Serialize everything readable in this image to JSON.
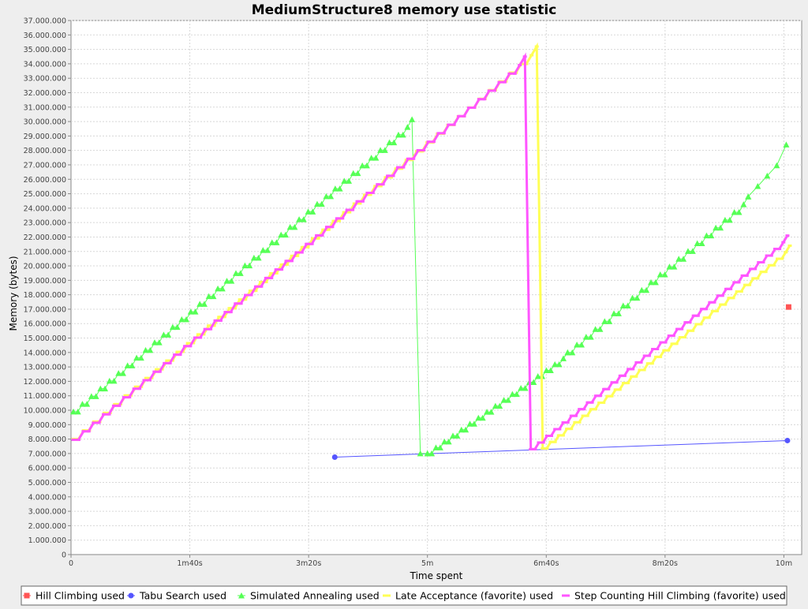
{
  "chart_data": {
    "type": "line",
    "title": "MediumStructure8 memory use statistic",
    "xlabel": "Time spent",
    "ylabel": "Memory (bytes)",
    "xlim": [
      0,
      615
    ],
    "ylim": [
      0,
      37000000
    ],
    "x_ticks": [
      {
        "value": 0,
        "label": "0"
      },
      {
        "value": 100,
        "label": "1m40s"
      },
      {
        "value": 200,
        "label": "3m20s"
      },
      {
        "value": 300,
        "label": "5m"
      },
      {
        "value": 400,
        "label": "6m40s"
      },
      {
        "value": 500,
        "label": "8m20s"
      },
      {
        "value": 600,
        "label": "10m"
      }
    ],
    "y_ticks": [
      {
        "value": 0,
        "label": "0"
      },
      {
        "value": 1000000,
        "label": "1.000.000"
      },
      {
        "value": 2000000,
        "label": "2.000.000"
      },
      {
        "value": 3000000,
        "label": "3.000.000"
      },
      {
        "value": 4000000,
        "label": "4.000.000"
      },
      {
        "value": 5000000,
        "label": "5.000.000"
      },
      {
        "value": 6000000,
        "label": "6.000.000"
      },
      {
        "value": 7000000,
        "label": "7.000.000"
      },
      {
        "value": 8000000,
        "label": "8.000.000"
      },
      {
        "value": 9000000,
        "label": "9.000.000"
      },
      {
        "value": 10000000,
        "label": "10.000.000"
      },
      {
        "value": 11000000,
        "label": "11.000.000"
      },
      {
        "value": 12000000,
        "label": "12.000.000"
      },
      {
        "value": 13000000,
        "label": "13.000.000"
      },
      {
        "value": 14000000,
        "label": "14.000.000"
      },
      {
        "value": 15000000,
        "label": "15.000.000"
      },
      {
        "value": 16000000,
        "label": "16.000.000"
      },
      {
        "value": 17000000,
        "label": "17.000.000"
      },
      {
        "value": 18000000,
        "label": "18.000.000"
      },
      {
        "value": 19000000,
        "label": "19.000.000"
      },
      {
        "value": 20000000,
        "label": "20.000.000"
      },
      {
        "value": 21000000,
        "label": "21.000.000"
      },
      {
        "value": 22000000,
        "label": "22.000.000"
      },
      {
        "value": 23000000,
        "label": "23.000.000"
      },
      {
        "value": 24000000,
        "label": "24.000.000"
      },
      {
        "value": 25000000,
        "label": "25.000.000"
      },
      {
        "value": 26000000,
        "label": "26.000.000"
      },
      {
        "value": 27000000,
        "label": "27.000.000"
      },
      {
        "value": 28000000,
        "label": "28.000.000"
      },
      {
        "value": 29000000,
        "label": "29.000.000"
      },
      {
        "value": 30000000,
        "label": "30.000.000"
      },
      {
        "value": 31000000,
        "label": "31.000.000"
      },
      {
        "value": 32000000,
        "label": "32.000.000"
      },
      {
        "value": 33000000,
        "label": "33.000.000"
      },
      {
        "value": 34000000,
        "label": "34.000.000"
      },
      {
        "value": 35000000,
        "label": "35.000.000"
      },
      {
        "value": 36000000,
        "label": "36.000.000"
      },
      {
        "value": 37000000,
        "label": "37.000.000"
      }
    ],
    "grid": true,
    "legend_position": "bottom",
    "series": [
      {
        "name": "Hill Climbing used",
        "color": "#ff5555",
        "marker": "square",
        "points": [
          [
            604,
            17150000
          ]
        ]
      },
      {
        "name": "Tabu Search used",
        "color": "#5555ff",
        "marker": "circle",
        "points": [
          [
            222,
            6750000
          ],
          [
            603,
            7900000
          ]
        ]
      },
      {
        "name": "Simulated Annealing used",
        "color": "#55ff55",
        "marker": "triangle",
        "segments": [
          {
            "x": [
              2,
              287
            ],
            "y": [
              9900000,
              30150000
            ],
            "n": 76,
            "steps": 38
          },
          {
            "x": [
              294,
              300
            ],
            "y": [
              7000000,
              7000000
            ],
            "n": 2,
            "steps": 1
          },
          {
            "x": [
              300,
              418
            ],
            "y": [
              7000000,
              14000000
            ],
            "n": 34,
            "steps": 17
          },
          {
            "x": [
              418,
              570
            ],
            "y": [
              14000000,
              24800000
            ],
            "n": 40,
            "steps": 20
          },
          {
            "x": [
              570,
              602
            ],
            "y": [
              24800000,
              28400000
            ],
            "n": 5,
            "steps": 5
          }
        ]
      },
      {
        "name": "Late Acceptance (favorite) used",
        "color": "#ffff55",
        "marker": "none",
        "segments": [
          {
            "x": [
              2,
              392
            ],
            "y": [
              8000000,
              35200000
            ],
            "n": 90,
            "steps": 45
          },
          {
            "x": [
              397,
              605
            ],
            "y": [
              7350000,
              21400000
            ],
            "n": 62,
            "steps": 31
          }
        ]
      },
      {
        "name": "Step Counting Hill Climbing (favorite) used",
        "color": "#ff55ff",
        "marker": "none",
        "segments": [
          {
            "x": [
              2,
              382
            ],
            "y": [
              7950000,
              34500000
            ],
            "n": 90,
            "steps": 45
          },
          {
            "x": [
              387,
              603
            ],
            "y": [
              7300000,
              22100000
            ],
            "n": 64,
            "steps": 32
          }
        ]
      }
    ]
  }
}
